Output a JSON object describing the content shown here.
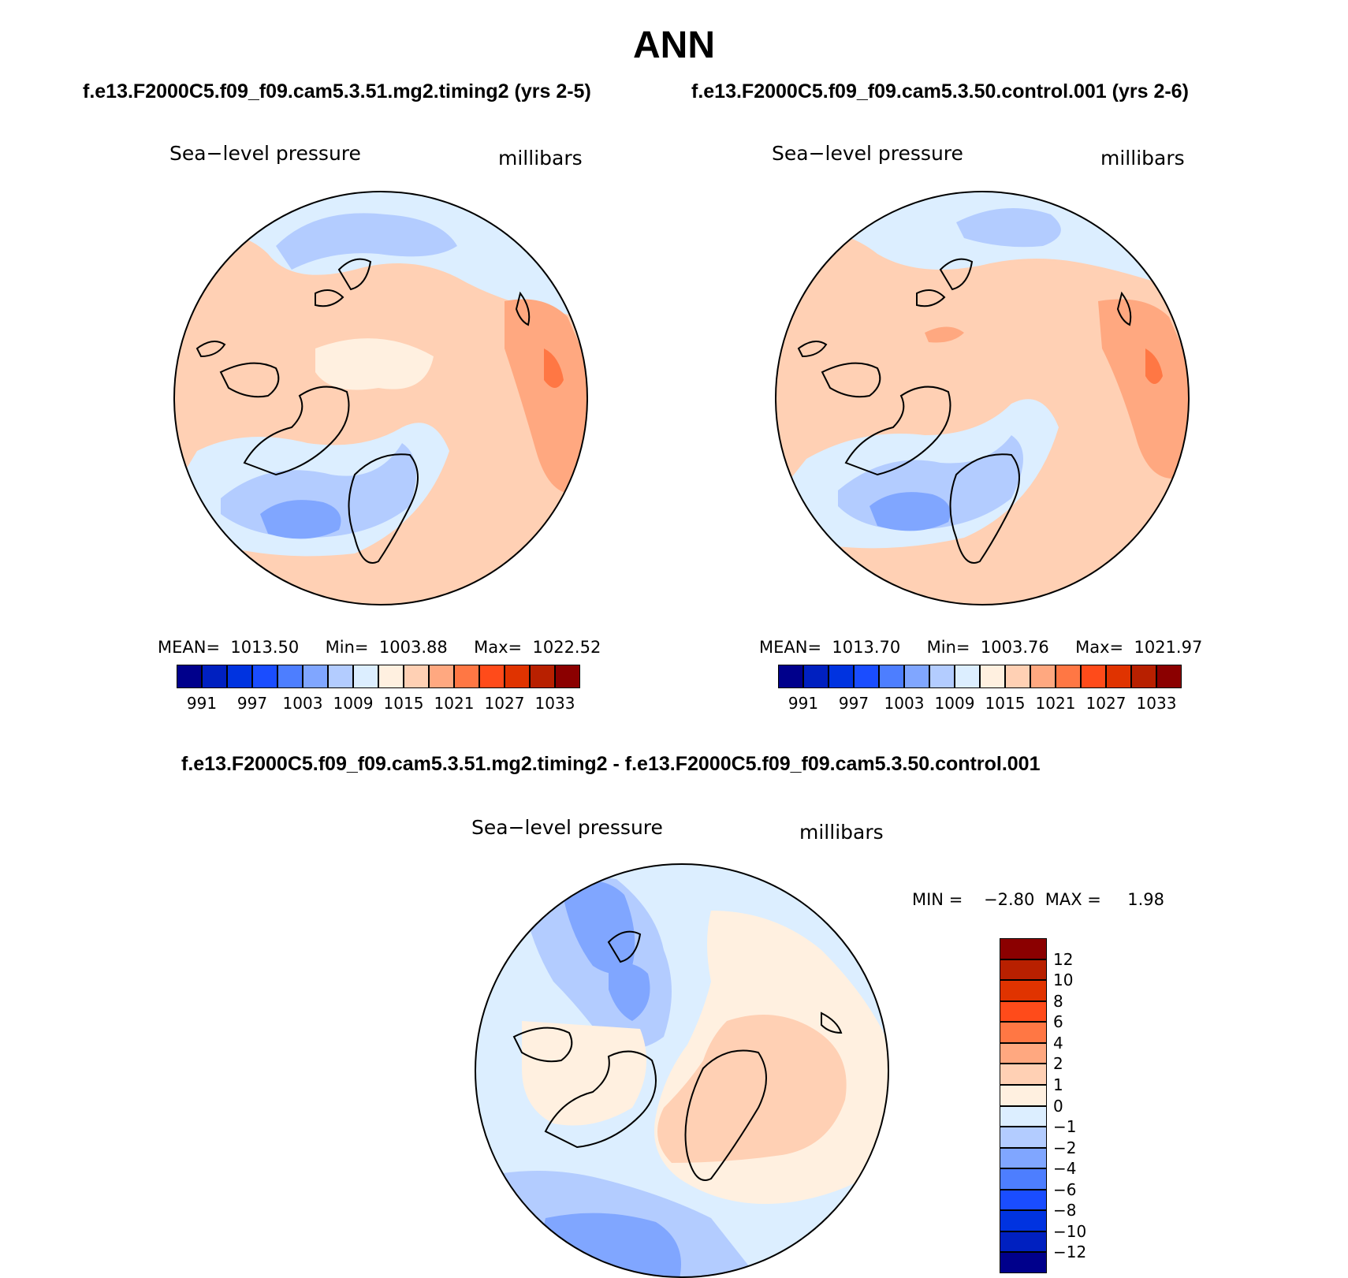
{
  "chart_data": [
    {
      "type": "heatmap",
      "projection": "north-polar-stereographic",
      "title": "f.e13.F2000C5.f09_f09.cam5.3.51.mg2.timing2 (yrs 2-5)",
      "variable": "Sea−level pressure",
      "units": "millibars",
      "stats": {
        "mean_label": "MEAN=",
        "mean": "1013.50",
        "min_label": "Min=",
        "min": "1003.88",
        "max_label": "Max=",
        "max": "1022.52"
      },
      "colorbar": {
        "orientation": "horizontal",
        "tick_labels": [
          "991",
          "997",
          "1003",
          "1009",
          "1015",
          "1021",
          "1027",
          "1033"
        ],
        "colors": [
          "#00008b",
          "#0020c0",
          "#0033e0",
          "#1a4dff",
          "#4d7eff",
          "#80a6ff",
          "#b3ccff",
          "#dceeff",
          "#fff0e0",
          "#ffd0b4",
          "#ffa880",
          "#ff7744",
          "#ff4b1a",
          "#e03300",
          "#b82000",
          "#8b0000"
        ]
      }
    },
    {
      "type": "heatmap",
      "projection": "north-polar-stereographic",
      "title": "f.e13.F2000C5.f09_f09.cam5.3.50.control.001 (yrs 2-6)",
      "variable": "Sea−level pressure",
      "units": "millibars",
      "stats": {
        "mean_label": "MEAN=",
        "mean": "1013.70",
        "min_label": "Min=",
        "min": "1003.76",
        "max_label": "Max=",
        "max": "1021.97"
      },
      "colorbar": {
        "orientation": "horizontal",
        "tick_labels": [
          "991",
          "997",
          "1003",
          "1009",
          "1015",
          "1021",
          "1027",
          "1033"
        ],
        "colors": [
          "#00008b",
          "#0020c0",
          "#0033e0",
          "#1a4dff",
          "#4d7eff",
          "#80a6ff",
          "#b3ccff",
          "#dceeff",
          "#fff0e0",
          "#ffd0b4",
          "#ffa880",
          "#ff7744",
          "#ff4b1a",
          "#e03300",
          "#b82000",
          "#8b0000"
        ]
      }
    },
    {
      "type": "heatmap",
      "projection": "north-polar-stereographic",
      "title": "f.e13.F2000C5.f09_f09.cam5.3.51.mg2.timing2 - f.e13.F2000C5.f09_f09.cam5.3.50.control.001",
      "variable": "Sea−level pressure",
      "units": "millibars",
      "stats": {
        "min_label": "MIN =",
        "min": "−2.80",
        "max_label": "MAX =",
        "max": "1.98"
      },
      "colorbar": {
        "orientation": "vertical",
        "tick_labels": [
          "12",
          "10",
          "8",
          "6",
          "4",
          "2",
          "1",
          "0",
          "−1",
          "−2",
          "−4",
          "−6",
          "−8",
          "−10",
          "−12"
        ],
        "colors": [
          "#8b0000",
          "#b82000",
          "#e03300",
          "#ff4b1a",
          "#ff7744",
          "#ffa880",
          "#ffd0b4",
          "#fff0e0",
          "#dceeff",
          "#b3ccff",
          "#80a6ff",
          "#4d7eff",
          "#1a4dff",
          "#0033e0",
          "#0020c0",
          "#00008b"
        ]
      }
    }
  ],
  "figure": {
    "season": "ANN"
  }
}
